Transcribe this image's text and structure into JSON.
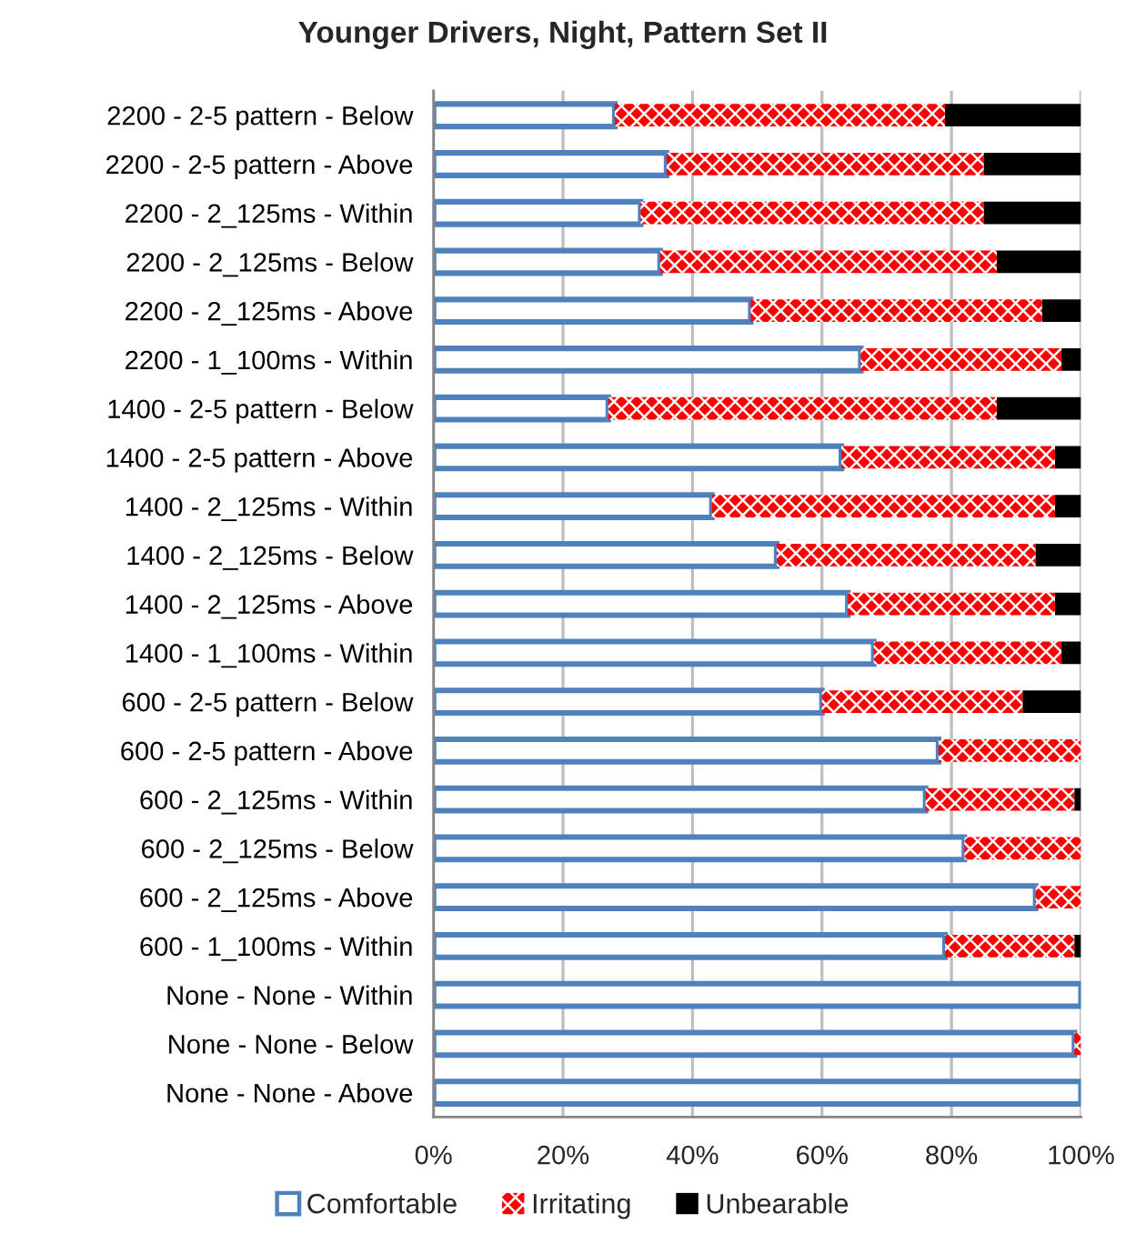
{
  "chart_data": {
    "type": "bar",
    "orientation": "horizontal",
    "stacked": true,
    "title": "Younger Drivers, Night, Pattern Set II",
    "categories": [
      "2200 - 2-5 pattern - Below",
      "2200 - 2-5 pattern - Above",
      "2200 - 2_125ms - Within",
      "2200 - 2_125ms - Below",
      "2200 - 2_125ms - Above",
      "2200 - 1_100ms - Within",
      "1400 - 2-5 pattern - Below",
      "1400 - 2-5 pattern - Above",
      "1400 - 2_125ms - Within",
      "1400 - 2_125ms - Below",
      "1400 - 2_125ms - Above",
      "1400 - 1_100ms - Within",
      "600 - 2-5 pattern - Below",
      "600 - 2-5 pattern - Above",
      "600 - 2_125ms - Within",
      "600 - 2_125ms - Below",
      "600 - 2_125ms - Above",
      "600 - 1_100ms - Within",
      "None - None - Within",
      "None - None - Below",
      "None - None - Above"
    ],
    "series": [
      {
        "name": "Comfortable",
        "color": "#4f81bd",
        "values": [
          28,
          36,
          32,
          35,
          49,
          66,
          27,
          63,
          43,
          53,
          64,
          68,
          60,
          78,
          76,
          82,
          93,
          79,
          100,
          99,
          100
        ]
      },
      {
        "name": "Irritating",
        "color": "#ff0000",
        "values": [
          51,
          49,
          53,
          52,
          45,
          31,
          60,
          33,
          53,
          40,
          32,
          29,
          31,
          22,
          23,
          18,
          7,
          20,
          0,
          1,
          0
        ]
      },
      {
        "name": "Unbearable",
        "color": "#000000",
        "values": [
          21,
          15,
          15,
          13,
          6,
          3,
          13,
          4,
          4,
          7,
          4,
          3,
          9,
          0,
          1,
          0,
          0,
          1,
          0,
          0,
          0
        ]
      }
    ],
    "xlim": [
      0,
      100
    ],
    "xticks": [
      {
        "value": 0,
        "label": "0%"
      },
      {
        "value": 20,
        "label": "20%"
      },
      {
        "value": 40,
        "label": "40%"
      },
      {
        "value": 60,
        "label": "60%"
      },
      {
        "value": 80,
        "label": "80%"
      },
      {
        "value": 100,
        "label": "100%"
      }
    ],
    "grid": "x",
    "legend": "bottom"
  }
}
